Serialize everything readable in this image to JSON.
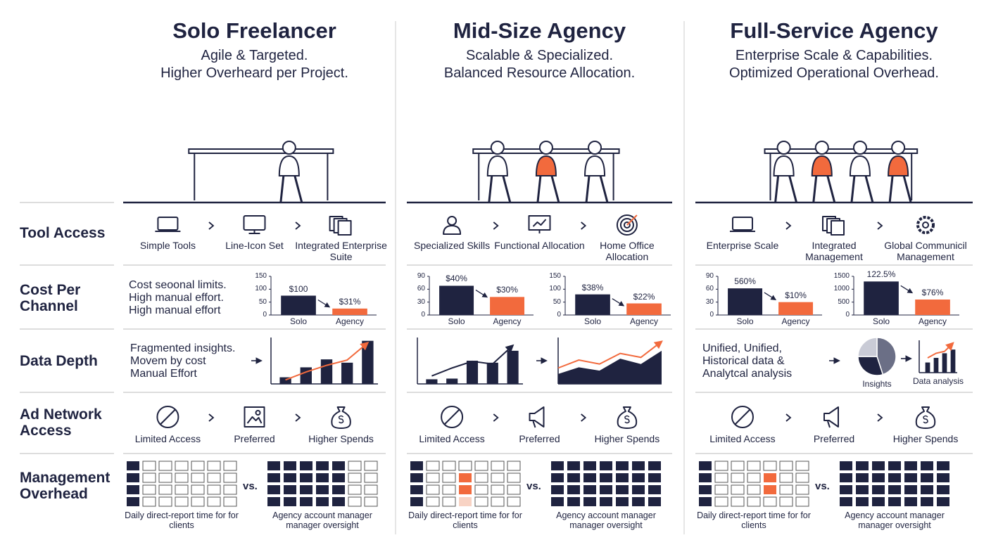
{
  "row_labels": [
    "Tool Access",
    "Cost Per Channel",
    "Data Depth",
    "Ad Network Access",
    "Management Overhead"
  ],
  "palette": {
    "dark": "#1f2340",
    "accent": "#f26a3d"
  },
  "columns": [
    {
      "title": "Solo Freelancer",
      "subtitle": [
        "Agile & Targeted.",
        "Higher Overheard per Project."
      ],
      "tools": [
        "Simple Tools",
        "Line-Icon Set",
        "Integrated Enterprise Suite"
      ],
      "cost": {
        "text": [
          "Cost seoonal limits.",
          "High manual effort.",
          "High manual effort"
        ],
        "charts": [
          {
            "type": "bar",
            "ylim": [
              0,
              150
            ],
            "yticks": [
              0,
              50,
              100,
              150
            ],
            "categories": [
              "Solo",
              "Agency"
            ],
            "values": [
              75,
              25
            ],
            "bar_labels": [
              "$100",
              "$31%"
            ]
          }
        ]
      },
      "data_depth": {
        "text": [
          "Fragmented insights.",
          "Movem by cost",
          "Manual Effort"
        ],
        "charts": [
          {
            "type": "bar-line",
            "ylim": [
              0,
              70
            ],
            "bars": [
              10,
              25,
              37,
              32,
              65
            ],
            "line": [
              6,
              18,
              28,
              36,
              62
            ],
            "line_color": "#f26a3d"
          }
        ]
      },
      "ad_network": [
        "Limited Access",
        "Preferred",
        "Higher Spends"
      ],
      "overhead": {
        "left": "Daily direct-report time for for clients",
        "vs": "vs.",
        "right": "Agency account manager manager oversight"
      }
    },
    {
      "title": "Mid-Size Agency",
      "subtitle": [
        "Scalable & Specialized.",
        "Balanced Resource Allocation."
      ],
      "tools": [
        "Specialized Skills",
        "Functional Allocation",
        "Home Office Allocation"
      ],
      "cost": {
        "charts": [
          {
            "type": "bar",
            "ylim": [
              0,
              90
            ],
            "yticks": [
              0,
              30,
              60,
              90
            ],
            "categories": [
              "Solo",
              "Agency"
            ],
            "values": [
              68,
              42
            ],
            "bar_labels": [
              "$40%",
              "$30%"
            ]
          },
          {
            "type": "bar",
            "ylim": [
              0,
              150
            ],
            "yticks": [
              0,
              50,
              100,
              150
            ],
            "categories": [
              "Solo",
              "Agency"
            ],
            "values": [
              80,
              45
            ],
            "bar_labels": [
              "$38%",
              "$22%"
            ]
          }
        ]
      },
      "data_depth": {
        "charts": [
          {
            "type": "bar-line",
            "ylim": [
              0,
              70
            ],
            "bars": [
              7,
              8,
              35,
              32,
              50
            ],
            "line": [
              12,
              24,
              34,
              30,
              58
            ],
            "line_color": "#1f2340"
          },
          {
            "type": "area-line",
            "ylim": [
              0,
              70
            ],
            "area": [
              15,
              25,
              20,
              38,
              30,
              50
            ],
            "line": [
              24,
              36,
              30,
              46,
              40,
              64
            ],
            "line_color": "#f26a3d"
          }
        ]
      },
      "ad_network": [
        "Limited Access",
        "Preferred",
        "Higher Spends"
      ],
      "overhead": {
        "left": "Daily direct-report time for for clients",
        "vs": "vs.",
        "right": "Agency account manager manager oversight"
      }
    },
    {
      "title": "Full-Service Agency",
      "subtitle": [
        "Enterprise Scale & Capabilities.",
        "Optimized Operational Overhead."
      ],
      "tools": [
        "Enterprise Scale",
        "Integrated Management",
        "Global Communicil Management"
      ],
      "cost": {
        "charts": [
          {
            "type": "bar",
            "ylim": [
              0,
              90
            ],
            "yticks": [
              0,
              30,
              60,
              90
            ],
            "categories": [
              "Solo",
              "Agency"
            ],
            "values": [
              62,
              30
            ],
            "bar_labels": [
              "560%",
              "$10%"
            ]
          },
          {
            "type": "bar",
            "ylim": [
              0,
              1500
            ],
            "yticks": [
              0,
              500,
              1000,
              1500
            ],
            "categories": [
              "Solo",
              "Agency"
            ],
            "values": [
              1300,
              600
            ],
            "bar_labels": [
              "122.5%",
              "$76%"
            ]
          }
        ]
      },
      "data_depth": {
        "text": [
          "Unified, Unified,",
          "Historical data &",
          "Analytcal analysis"
        ],
        "charts": [
          {
            "type": "pie",
            "values": [
              45,
              30,
              25
            ],
            "colors": [
              "#6b6f86",
              "#1f2340",
              "#c9cbd6"
            ],
            "label": "Insights"
          },
          {
            "type": "bar-line",
            "ylim": [
              0,
              70
            ],
            "bars": [
              22,
              32,
              42,
              50
            ],
            "line": [
              32,
              42,
              46,
              64
            ],
            "line_color": "#f26a3d",
            "label": "Data analysis"
          }
        ]
      },
      "ad_network": [
        "Limited Access",
        "Preferred",
        "Higher Spends"
      ],
      "overhead": {
        "left": "Daily direct-report time for for clients",
        "vs": "vs.",
        "right": "Agency account manager manager oversight"
      }
    }
  ]
}
